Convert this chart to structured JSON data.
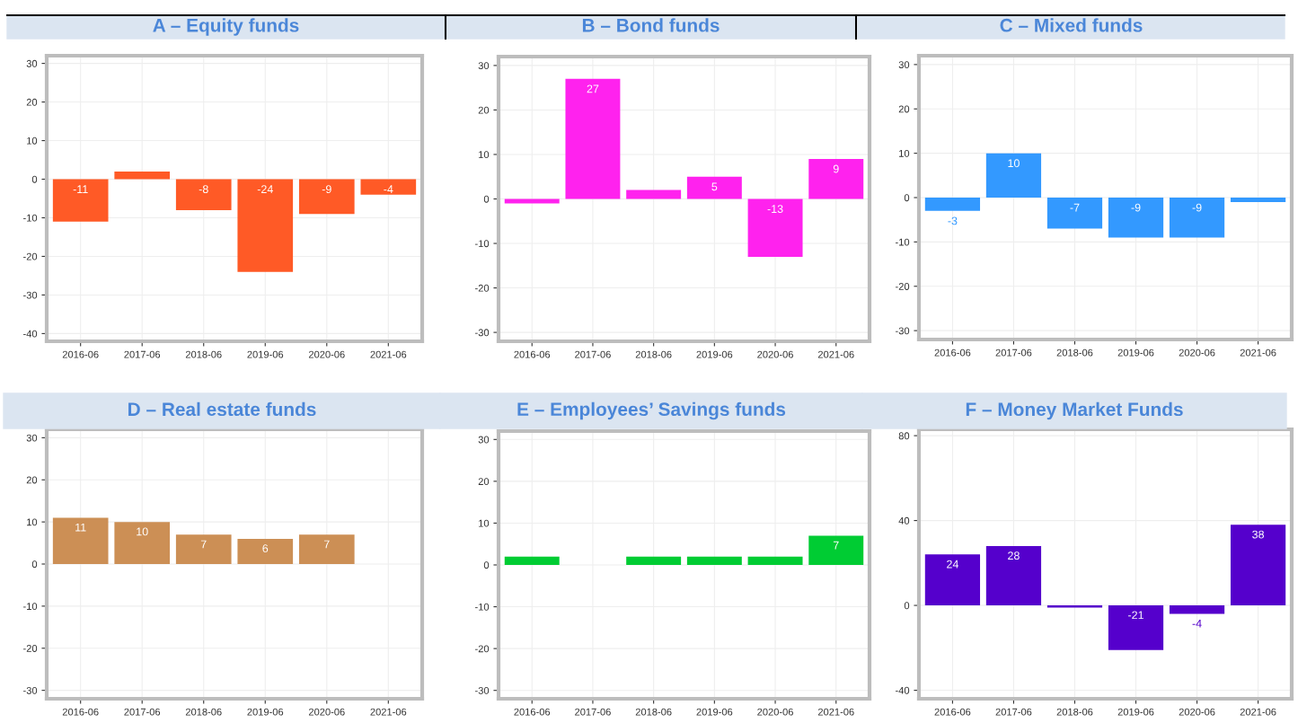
{
  "chart_data": [
    {
      "type": "bar",
      "title": "A – Equity funds",
      "categories": [
        "2016-06",
        "2017-06",
        "2018-06",
        "2019-06",
        "2020-06",
        "2021-06"
      ],
      "values": [
        -11,
        2,
        -8,
        -24,
        -9,
        -4
      ],
      "value_labels": [
        "-11",
        null,
        "-8",
        "-24",
        "-9",
        "-4"
      ],
      "color": "#ff5a26",
      "ylim": [
        -42,
        32
      ],
      "yticks": [
        -40,
        -30,
        -20,
        -10,
        0,
        10,
        20,
        30
      ],
      "grid": true
    },
    {
      "type": "bar",
      "title": "B – Bond funds",
      "categories": [
        "2016-06",
        "2017-06",
        "2018-06",
        "2019-06",
        "2020-06",
        "2021-06"
      ],
      "values": [
        -1,
        27,
        2,
        5,
        -13,
        9
      ],
      "value_labels": [
        null,
        "27",
        null,
        "5",
        "-13",
        "9"
      ],
      "color": "#ff22ee",
      "ylim": [
        -32,
        32
      ],
      "yticks": [
        -30,
        -20,
        -10,
        0,
        10,
        20,
        30
      ],
      "grid": true
    },
    {
      "type": "bar",
      "title": "C – Mixed funds",
      "categories": [
        "2016-06",
        "2017-06",
        "2018-06",
        "2019-06",
        "2020-06",
        "2021-06"
      ],
      "values": [
        -3,
        10,
        -7,
        -9,
        -9,
        -1
      ],
      "value_labels": [
        "-3",
        "10",
        "-7",
        "-9",
        "-9",
        null
      ],
      "color": "#3399ff",
      "ylim": [
        -32,
        32
      ],
      "yticks": [
        -30,
        -20,
        -10,
        0,
        10,
        20,
        30
      ],
      "grid": true
    },
    {
      "type": "bar",
      "title": "D – Real estate funds",
      "categories": [
        "2016-06",
        "2017-06",
        "2018-06",
        "2019-06",
        "2020-06",
        "2021-06"
      ],
      "values": [
        11,
        10,
        7,
        6,
        7,
        0
      ],
      "value_labels": [
        "11",
        "10",
        "7",
        "6",
        "7",
        null
      ],
      "color": "#cc8f55",
      "ylim": [
        -32,
        32
      ],
      "yticks": [
        -30,
        -20,
        -10,
        0,
        10,
        20,
        30
      ],
      "grid": true
    },
    {
      "type": "bar",
      "title": "E – Employees’ Savings funds",
      "categories": [
        "2016-06",
        "2017-06",
        "2018-06",
        "2019-06",
        "2020-06",
        "2021-06"
      ],
      "values": [
        2,
        0,
        2,
        2,
        2,
        7
      ],
      "value_labels": [
        null,
        null,
        null,
        null,
        null,
        "7"
      ],
      "color": "#00cc33",
      "ylim": [
        -32,
        32
      ],
      "yticks": [
        -30,
        -20,
        -10,
        0,
        10,
        20,
        30
      ],
      "grid": true
    },
    {
      "type": "bar",
      "title": "F – Money Market Funds",
      "categories": [
        "2016-06",
        "2017-06",
        "2018-06",
        "2019-06",
        "2020-06",
        "2021-06"
      ],
      "values": [
        24,
        28,
        -1,
        -21,
        -4,
        38
      ],
      "value_labels": [
        "24",
        "28",
        null,
        "-21",
        "-4",
        "38"
      ],
      "color": "#5500cc",
      "ylim": [
        -44,
        83
      ],
      "yticks": [
        -40,
        0,
        40,
        80
      ],
      "grid": true
    }
  ]
}
